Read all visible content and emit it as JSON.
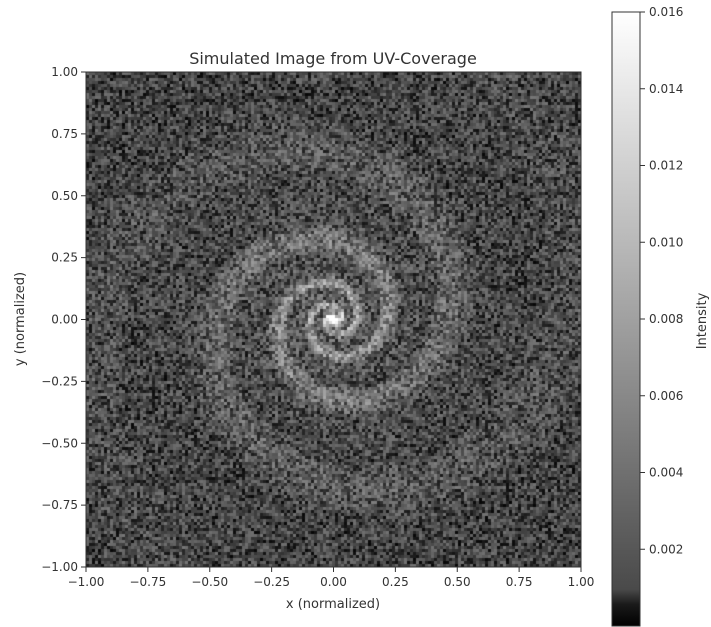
{
  "chart_data": {
    "type": "heatmap",
    "title": "Simulated Image from UV-Coverage",
    "xlabel": "x (normalized)",
    "ylabel": "y (normalized)",
    "xlim": [
      -1.0,
      1.0
    ],
    "ylim": [
      -1.0,
      1.0
    ],
    "x_ticks": [
      -1.0,
      -0.75,
      -0.5,
      -0.25,
      0.0,
      0.25,
      0.5,
      0.75,
      1.0
    ],
    "x_tick_labels": [
      "−1.00",
      "−0.75",
      "−0.50",
      "−0.25",
      "0.00",
      "0.25",
      "0.50",
      "0.75",
      "1.00"
    ],
    "y_ticks": [
      1.0,
      0.75,
      0.5,
      0.25,
      0.0,
      -0.25,
      -0.5,
      -0.75,
      -1.0
    ],
    "y_tick_labels": [
      "1.00",
      "0.75",
      "0.50",
      "0.25",
      "0.00",
      "−0.25",
      "−0.50",
      "−0.75",
      "−1.00"
    ],
    "colormap": "gray",
    "colorbar": {
      "label": "Intensity",
      "range": [
        0.0,
        0.016
      ],
      "ticks": [
        0.016,
        0.014,
        0.012,
        0.01,
        0.008,
        0.006,
        0.004,
        0.002
      ],
      "tick_labels": [
        "0.016",
        "0.014",
        "0.012",
        "0.010",
        "0.008",
        "0.006",
        "0.004",
        "0.002"
      ]
    },
    "image_description_values": {
      "peak_intensity": 0.016,
      "peak_location": [
        0.0,
        0.0
      ],
      "structure": "two-arm spiral centred at origin"
    },
    "grid": false
  },
  "colors": {
    "background": "#ffffff",
    "axis": "#333333",
    "image_dark": "#000000",
    "image_light": "#ffffff"
  }
}
